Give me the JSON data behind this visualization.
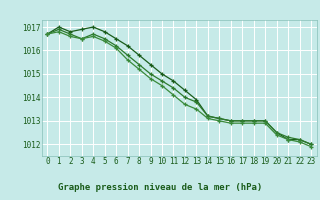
{
  "title": "Graphe pression niveau de la mer (hPa)",
  "bg_color": "#c6eae8",
  "grid_color": "#b0d8d4",
  "line_color_dark": "#1a5c1a",
  "line_color_mid": "#2d7a2d",
  "line_color_light": "#3a8a3a",
  "xlim": [
    -0.5,
    23.5
  ],
  "ylim": [
    1011.5,
    1017.3
  ],
  "yticks": [
    1012,
    1013,
    1014,
    1015,
    1016,
    1017
  ],
  "xticks": [
    0,
    1,
    2,
    3,
    4,
    5,
    6,
    7,
    8,
    9,
    10,
    11,
    12,
    13,
    14,
    15,
    16,
    17,
    18,
    19,
    20,
    21,
    22,
    23
  ],
  "series1": [
    1016.7,
    1017.0,
    1016.8,
    1016.9,
    1017.0,
    1016.8,
    1016.5,
    1016.2,
    1015.8,
    1015.4,
    1015.0,
    1014.7,
    1014.3,
    1013.9,
    1013.2,
    1013.1,
    1013.0,
    1013.0,
    1013.0,
    1013.0,
    1012.5,
    1012.2,
    1012.2,
    1012.0
  ],
  "series2": [
    1016.7,
    1016.9,
    1016.7,
    1016.5,
    1016.7,
    1016.5,
    1016.2,
    1015.8,
    1015.4,
    1015.0,
    1014.7,
    1014.4,
    1014.0,
    1013.8,
    1013.2,
    1013.1,
    1013.0,
    1013.0,
    1013.0,
    1013.0,
    1012.5,
    1012.3,
    1012.2,
    1012.0
  ],
  "series3": [
    1016.7,
    1016.8,
    1016.6,
    1016.5,
    1016.6,
    1016.4,
    1016.1,
    1015.6,
    1015.2,
    1014.8,
    1014.5,
    1014.1,
    1013.7,
    1013.5,
    1013.1,
    1013.0,
    1012.9,
    1012.9,
    1012.9,
    1012.9,
    1012.4,
    1012.2,
    1012.1,
    1011.9
  ],
  "tick_fontsize": 5.5,
  "xlabel_fontsize": 6.5,
  "title_bar_color": "#2d7a2d",
  "title_bar_bg": "#1a5c1a"
}
